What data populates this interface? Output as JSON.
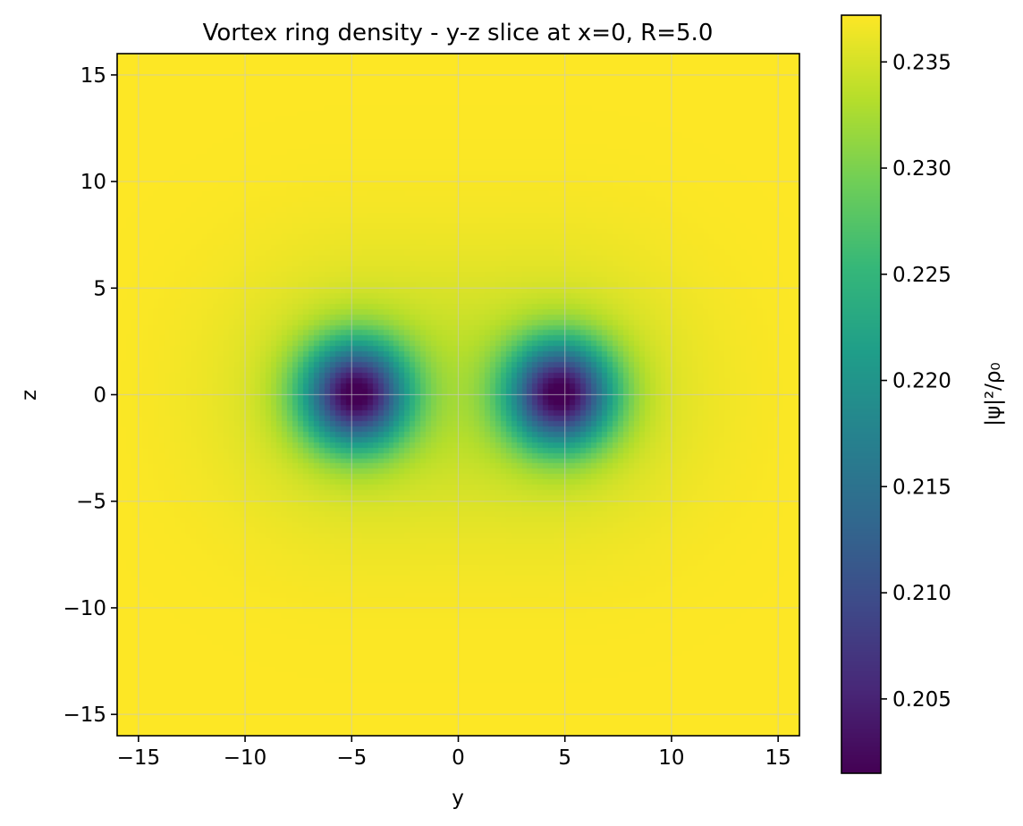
{
  "chart_data": {
    "type": "heatmap",
    "title": "Vortex ring density - y-z slice at x=0, R=5.0",
    "xlabel": "y",
    "ylabel": "z",
    "xlim": [
      -16,
      16
    ],
    "ylim": [
      -16,
      16
    ],
    "xticks": [
      -15,
      -10,
      -5,
      0,
      5,
      10,
      15
    ],
    "yticks": [
      -15,
      -10,
      -5,
      0,
      5,
      10,
      15
    ],
    "xtick_labels": [
      "−15",
      "−10",
      "−5",
      "0",
      "5",
      "10",
      "15"
    ],
    "ytick_labels": [
      "−15",
      "−10",
      "−5",
      "0",
      "5",
      "10",
      "15"
    ],
    "grid": true,
    "colormap": "viridis",
    "colorbar": {
      "label": "|ψ|²/ρ₀",
      "min": 0.2015,
      "max": 0.2372,
      "ticks": [
        0.205,
        0.21,
        0.215,
        0.22,
        0.225,
        0.23,
        0.235
      ],
      "tick_labels": [
        "0.205",
        "0.210",
        "0.215",
        "0.220",
        "0.225",
        "0.230",
        "0.235"
      ]
    },
    "vortex_cores": [
      {
        "y": -4.8,
        "z": 0
      },
      {
        "y": 4.8,
        "z": 0
      }
    ],
    "background_value": 0.2372,
    "core_value": 0.2015
  }
}
